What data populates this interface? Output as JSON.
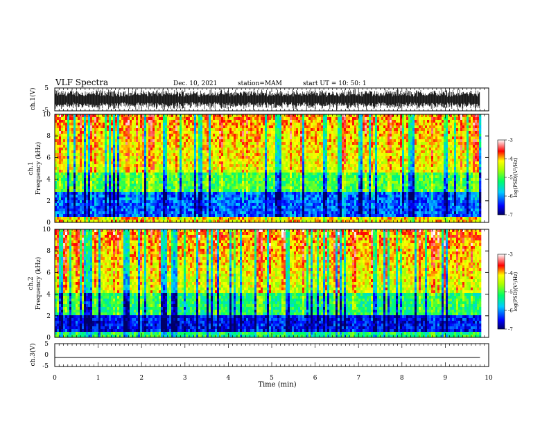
{
  "header": {
    "title": "VLF Spectra",
    "date": "Dec. 10, 2021",
    "station": "station=MAM",
    "start_ut": "start UT = 10: 50: 1"
  },
  "colors": {
    "spectrogram": [
      "#000066",
      "#0000ff",
      "#0099ff",
      "#00ffff",
      "#00ff66",
      "#66ff00",
      "#ffff00",
      "#ff9900",
      "#ff0000",
      "#ffffff"
    ],
    "waveform": "#000000"
  },
  "chart_data": [
    {
      "type": "line",
      "panel": "ch1-waveform",
      "ylabel": "ch.1(V)",
      "ylim": [
        -5,
        5
      ],
      "yticks": [
        "5",
        "-5"
      ],
      "description_values": {
        "amplitude_band": [
          -2.5,
          2.5
        ]
      }
    },
    {
      "type": "heatmap",
      "panel": "ch1-spectrogram",
      "ylabel_line1": "ch.1",
      "ylabel_line2": "Frequency (kHz)",
      "ylim": [
        0,
        10
      ],
      "yticks": [
        "0",
        "2",
        "4",
        "6",
        "8",
        "10"
      ],
      "colorbar": {
        "label": "log(PSD)(V²/Hz)",
        "range": [
          -7,
          -3
        ],
        "ticks": [
          "-3",
          "-4",
          "-5",
          "-6",
          "-7"
        ]
      }
    },
    {
      "type": "heatmap",
      "panel": "ch2-spectrogram",
      "ylabel_line1": "ch.2",
      "ylabel_line2": "Frequency (kHz)",
      "ylim": [
        0,
        10
      ],
      "yticks": [
        "0",
        "2",
        "4",
        "6",
        "8",
        "10"
      ],
      "colorbar": {
        "label": "log(PSD)(V²/Hz)",
        "range": [
          -7,
          -3
        ],
        "ticks": [
          "-3",
          "-4",
          "-5",
          "-6",
          "-7"
        ]
      }
    },
    {
      "type": "line",
      "panel": "ch3-waveform",
      "ylabel": "ch.3(V)",
      "ylim": [
        -5,
        5
      ],
      "yticks": [
        "5",
        "0",
        "-5"
      ],
      "x": [
        0,
        9.8
      ],
      "y": [
        -1,
        -1
      ]
    }
  ],
  "xaxis": {
    "label": "Time (min)",
    "range": [
      0,
      10
    ],
    "ticks": [
      "0",
      "1",
      "2",
      "3",
      "4",
      "5",
      "6",
      "7",
      "8",
      "9",
      "10"
    ]
  }
}
